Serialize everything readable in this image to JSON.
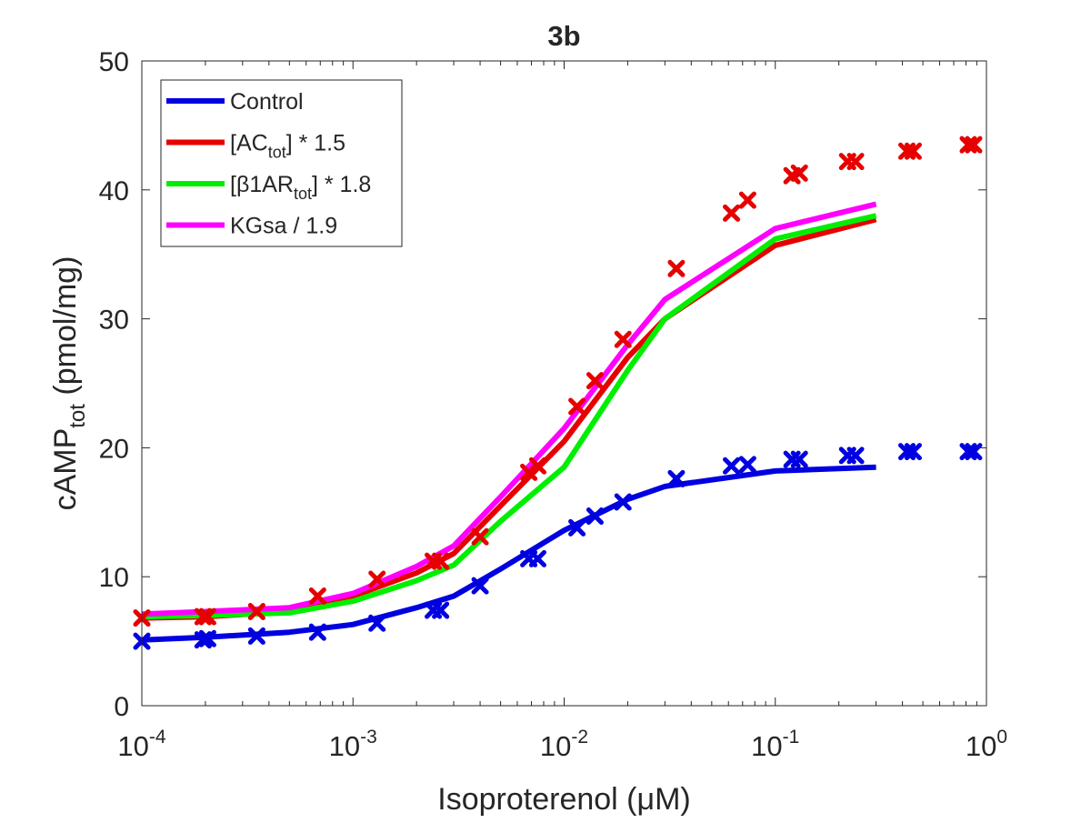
{
  "chart_data": {
    "type": "line",
    "title": "3b",
    "xlabel": "Isoproterenol (μM)",
    "ylabel": "cAMP_tot (pmol/mg)",
    "ylabel_parts": {
      "main": "cAMP",
      "sub": "tot",
      "unit": "(pmol/mg)"
    },
    "xscale": "log",
    "xlim": [
      0.0001,
      1
    ],
    "ylim": [
      0,
      50
    ],
    "xticks": [
      {
        "value": 0.0001,
        "base": "10",
        "exp": "-4"
      },
      {
        "value": 0.001,
        "base": "10",
        "exp": "-3"
      },
      {
        "value": 0.01,
        "base": "10",
        "exp": "-2"
      },
      {
        "value": 0.1,
        "base": "10",
        "exp": "-1"
      },
      {
        "value": 1,
        "base": "10",
        "exp": "0"
      }
    ],
    "yticks": [
      0,
      10,
      20,
      30,
      40,
      50
    ],
    "grid": false,
    "legend_position": "top-left",
    "lines": [
      {
        "name": "Control",
        "legend_parts": {
          "pre": "Control",
          "sub": "",
          "post": ""
        },
        "color": "#0000e0",
        "x": [
          0.0001,
          0.0002,
          0.0005,
          0.001,
          0.002,
          0.003,
          0.005,
          0.01,
          0.02,
          0.03,
          0.1,
          0.3
        ],
        "y": [
          5.1,
          5.3,
          5.7,
          6.3,
          7.6,
          8.5,
          10.6,
          13.6,
          16.0,
          17.0,
          18.2,
          18.5
        ]
      },
      {
        "name": "[AC_tot] * 1.5",
        "legend_parts": {
          "pre": "[AC",
          "sub": "tot",
          "post": "] * 1.5"
        },
        "color": "#e60000",
        "x": [
          0.0001,
          0.0002,
          0.0005,
          0.001,
          0.002,
          0.003,
          0.005,
          0.01,
          0.02,
          0.03,
          0.1,
          0.3
        ],
        "y": [
          6.8,
          6.9,
          7.3,
          8.5,
          10.3,
          11.8,
          15.5,
          20.5,
          27.0,
          30.0,
          35.7,
          37.7
        ]
      },
      {
        "name": "[β1AR_tot] * 1.8",
        "legend_parts": {
          "pre": "[β1AR",
          "sub": "tot",
          "post": "] * 1.8"
        },
        "color": "#00ee00",
        "x": [
          0.0001,
          0.0002,
          0.0005,
          0.001,
          0.002,
          0.003,
          0.005,
          0.01,
          0.02,
          0.03,
          0.1,
          0.3
        ],
        "y": [
          6.9,
          7.0,
          7.2,
          8.1,
          9.7,
          10.9,
          14.3,
          18.5,
          26.0,
          30.0,
          36.2,
          38.0
        ]
      },
      {
        "name": "KGsa / 1.9",
        "legend_parts": {
          "pre": "KGsa / 1.9",
          "sub": "",
          "post": ""
        },
        "color": "#ff00ff",
        "x": [
          0.0001,
          0.0002,
          0.0005,
          0.001,
          0.002,
          0.003,
          0.005,
          0.01,
          0.02,
          0.03,
          0.1,
          0.3
        ],
        "y": [
          7.1,
          7.3,
          7.6,
          8.7,
          10.8,
          12.4,
          16.2,
          21.5,
          28.0,
          31.5,
          37.0,
          38.9
        ]
      }
    ],
    "markers": [
      {
        "color": "#0000e0",
        "x": [
          0.0001,
          0.000195,
          0.000205,
          0.00035,
          0.00068,
          0.0013,
          0.0024,
          0.0026,
          0.004,
          0.0068,
          0.0075,
          0.0115,
          0.014,
          0.019,
          0.034,
          0.062,
          0.074,
          0.12,
          0.13,
          0.22,
          0.24,
          0.42,
          0.45,
          0.82,
          0.87
        ],
        "y": [
          5.0,
          5.1,
          5.2,
          5.4,
          5.7,
          6.4,
          7.4,
          7.4,
          9.3,
          11.4,
          11.4,
          13.8,
          14.7,
          15.8,
          17.6,
          18.6,
          18.7,
          19.1,
          19.1,
          19.4,
          19.4,
          19.7,
          19.7,
          19.7,
          19.7
        ]
      },
      {
        "color": "#e60000",
        "x": [
          0.0001,
          0.000195,
          0.000205,
          0.00035,
          0.00068,
          0.0013,
          0.0024,
          0.0026,
          0.004,
          0.0068,
          0.0075,
          0.0115,
          0.014,
          0.019,
          0.034,
          0.062,
          0.074,
          0.12,
          0.13,
          0.22,
          0.24,
          0.42,
          0.45,
          0.82,
          0.87
        ],
        "y": [
          6.8,
          6.9,
          6.9,
          7.3,
          8.5,
          9.8,
          11.2,
          11.2,
          13.1,
          18.1,
          18.6,
          23.2,
          25.2,
          28.4,
          33.9,
          38.2,
          39.2,
          41.1,
          41.3,
          42.2,
          42.2,
          43.0,
          43.0,
          43.5,
          43.5
        ]
      }
    ]
  }
}
